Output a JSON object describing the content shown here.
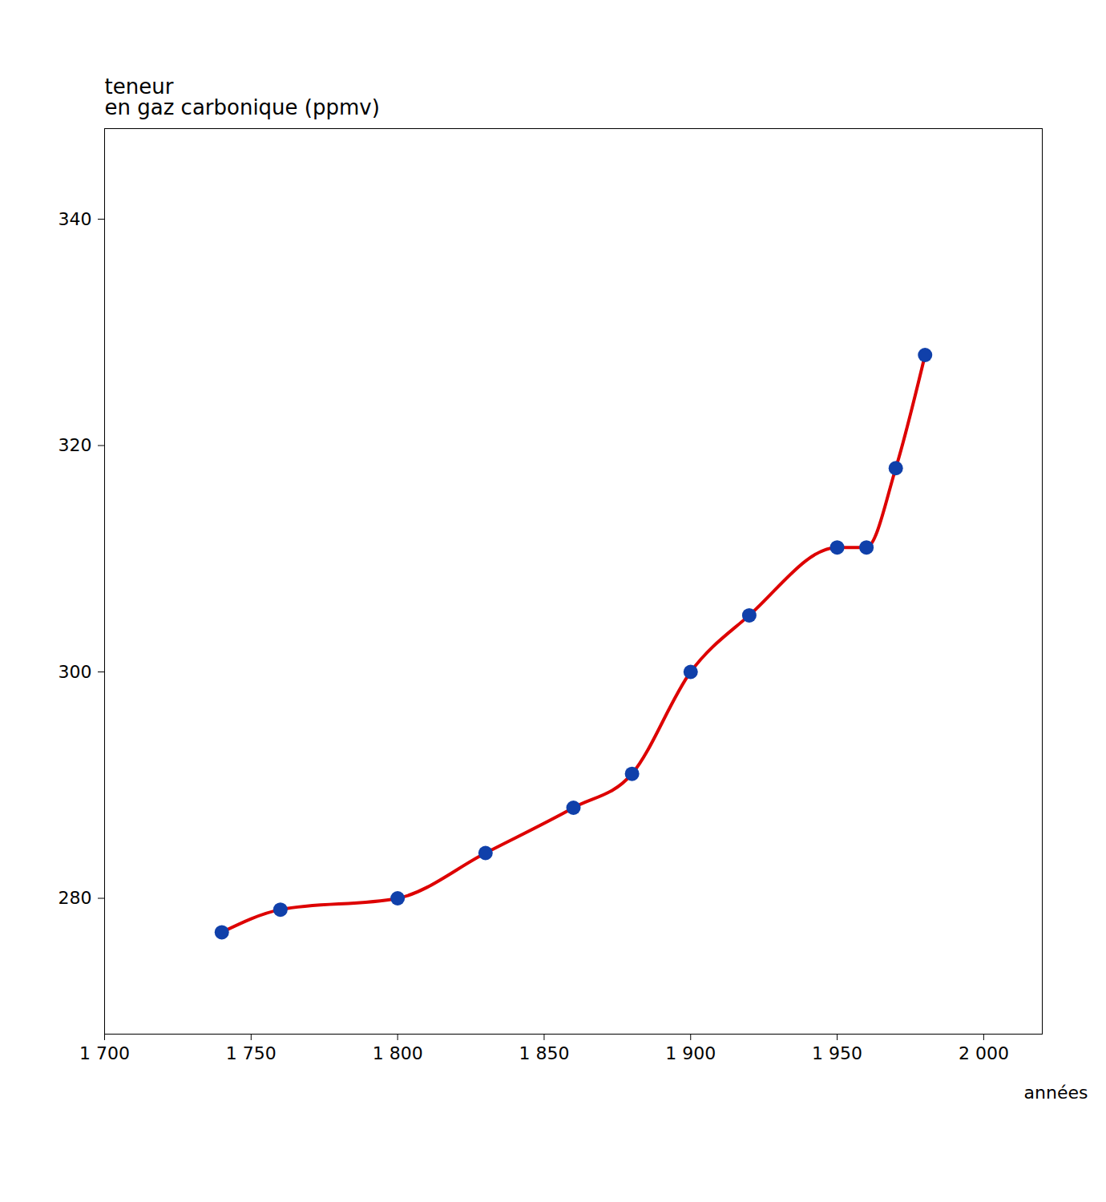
{
  "chart_data": {
    "type": "line",
    "ylabel": "teneur\nen gaz carbonique (ppmv)",
    "xlabel": "années",
    "x": [
      1740,
      1760,
      1800,
      1830,
      1860,
      1880,
      1900,
      1920,
      1950,
      1960,
      1970,
      1980
    ],
    "series": [
      {
        "type": "line",
        "color": "#dd0000",
        "line_style": "solid",
        "values": [
          277.0,
          279.0,
          280.0,
          284.0,
          288.0,
          291.0,
          300.0,
          305.0,
          311.0,
          311.0,
          318.0,
          328.0
        ]
      },
      {
        "type": "scatter",
        "color": "#1040aa",
        "marker": "circle",
        "values": [
          277.0,
          279.0,
          280.0,
          284.0,
          288.0,
          291.0,
          300.0,
          305.0,
          311.0,
          311.0,
          318.0,
          328.0
        ]
      }
    ],
    "xlim": [
      1700,
      2020
    ],
    "xticks": [
      {
        "value": 1700,
        "label": "1 700"
      },
      {
        "value": 1750,
        "label": "1 750"
      },
      {
        "value": 1800,
        "label": "1 800"
      },
      {
        "value": 1850,
        "label": "1 850"
      },
      {
        "value": 1900,
        "label": "1 900"
      },
      {
        "value": 1950,
        "label": "1 950"
      },
      {
        "value": 2000,
        "label": "2 000"
      }
    ],
    "ylim": [
      268,
      348
    ],
    "yticks": [
      280,
      300,
      320,
      340
    ],
    "grid": false
  }
}
